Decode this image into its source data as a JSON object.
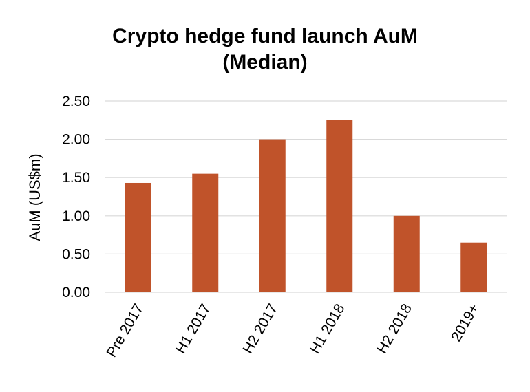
{
  "chart_data": {
    "type": "bar",
    "title_lines": [
      "Crypto hedge fund launch AuM",
      "(Median)"
    ],
    "ylabel": "AuM (US$m)",
    "xlabel": "",
    "categories": [
      "Pre 2017",
      "H1 2017",
      "H2 2017",
      "H1 2018",
      "H2 2018",
      "2019+"
    ],
    "values": [
      1.43,
      1.55,
      2.0,
      2.25,
      1.0,
      0.65
    ],
    "yticks": [
      "0.00",
      "0.50",
      "1.00",
      "1.50",
      "2.00",
      "2.50"
    ],
    "ylim": [
      0,
      2.5
    ],
    "grid": true,
    "legend": "none",
    "bar_color": "#C0532A",
    "grid_color": "#D9D9D9"
  }
}
